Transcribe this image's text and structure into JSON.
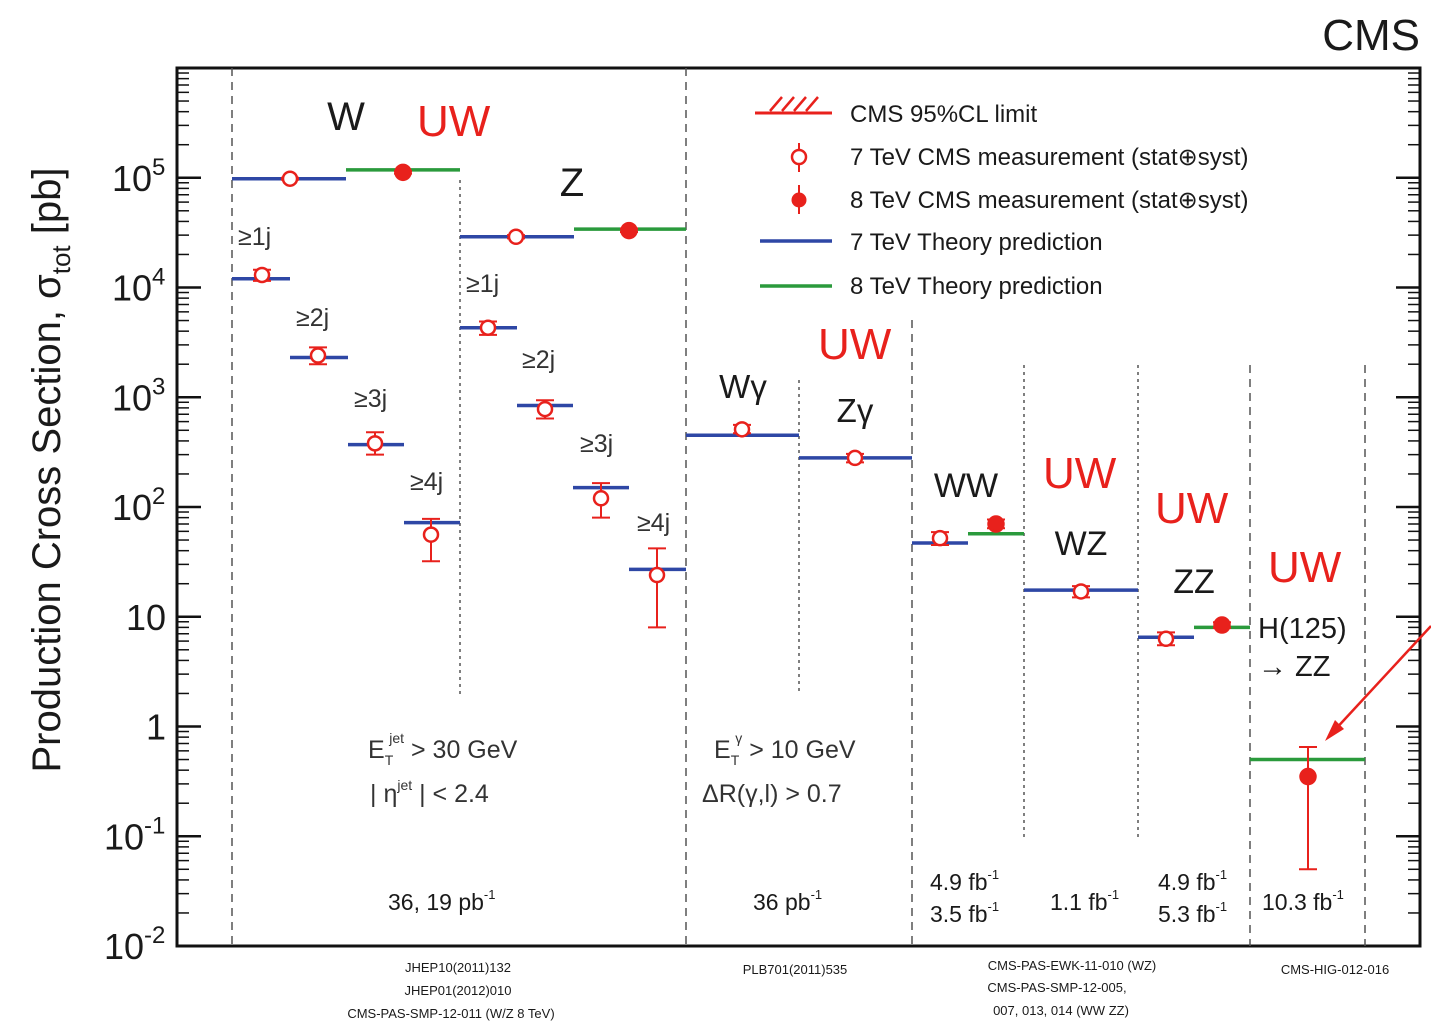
{
  "corner_label": "CMS",
  "chart_data": {
    "type": "scatter",
    "ylabel": "Production Cross Section,  σ_tot   [pb]",
    "yscale": "log",
    "ylim": [
      0.01,
      1000000
    ],
    "y_ticks": [
      {
        "value": 100000,
        "label": "10^5"
      },
      {
        "value": 10000,
        "label": "10^4"
      },
      {
        "value": 1000,
        "label": "10^3"
      },
      {
        "value": 100,
        "label": "10^2"
      },
      {
        "value": 10,
        "label": "10"
      },
      {
        "value": 1,
        "label": "1"
      },
      {
        "value": 0.1,
        "label": "10^-1"
      },
      {
        "value": 0.01,
        "label": "10^-2"
      }
    ],
    "legend": {
      "placement": "top-right",
      "entries": [
        {
          "label": "CMS 95%CL limit",
          "style": "hatch",
          "color": "#e8211c"
        },
        {
          "label": "7 TeV CMS measurement (stat⊕syst)",
          "style": "open-circle",
          "color": "#e8211c"
        },
        {
          "label": "8 TeV CMS measurement (stat⊕syst)",
          "style": "filled-circle",
          "color": "#e8211c"
        },
        {
          "label": "7 TeV Theory prediction",
          "style": "line",
          "color": "#2e47a5"
        },
        {
          "label": "8 TeV Theory prediction",
          "style": "line",
          "color": "#2a9a3c"
        }
      ]
    },
    "theory_7TeV": [
      {
        "slot": 0,
        "value": 98000
      },
      {
        "slot": 1,
        "value": 12000
      },
      {
        "slot": 2,
        "value": 2300
      },
      {
        "slot": 3,
        "value": 370
      },
      {
        "slot": 4,
        "value": 72
      },
      {
        "slot": 5,
        "value": 29000
      },
      {
        "slot": 6,
        "value": 4300
      },
      {
        "slot": 7,
        "value": 840
      },
      {
        "slot": 8,
        "value": 150
      },
      {
        "slot": 9,
        "value": 27
      },
      {
        "slot": 10,
        "value": 450
      },
      {
        "slot": 11,
        "value": 280
      },
      {
        "slot": 12,
        "value": 47
      },
      {
        "slot": 13,
        "value": 17.5
      },
      {
        "slot": 14,
        "value": 6.5
      }
    ],
    "theory_8TeV": [
      {
        "slot": 15,
        "value": 118000
      },
      {
        "slot": 16,
        "value": 34000
      },
      {
        "slot": 17,
        "value": 57
      },
      {
        "slot": 18,
        "value": 8
      },
      {
        "slot": 19,
        "value": 0.5
      }
    ],
    "measurements_7TeV": [
      {
        "slot": 0,
        "value": 98000,
        "low": 96000,
        "high": 100000
      },
      {
        "slot": 1,
        "value": 13000,
        "low": 11500,
        "high": 14500
      },
      {
        "slot": 2,
        "value": 2400,
        "low": 2000,
        "high": 2850
      },
      {
        "slot": 3,
        "value": 380,
        "low": 300,
        "high": 480
      },
      {
        "slot": 4,
        "value": 56,
        "low": 32,
        "high": 78
      },
      {
        "slot": 5,
        "value": 29000,
        "low": 28000,
        "high": 30000
      },
      {
        "slot": 6,
        "value": 4300,
        "low": 3700,
        "high": 4900
      },
      {
        "slot": 7,
        "value": 780,
        "low": 640,
        "high": 940
      },
      {
        "slot": 8,
        "value": 120,
        "low": 80,
        "high": 165
      },
      {
        "slot": 9,
        "value": 24,
        "low": 8,
        "high": 42
      },
      {
        "slot": 10,
        "value": 510,
        "low": 470,
        "high": 560
      },
      {
        "slot": 11,
        "value": 280,
        "low": 255,
        "high": 305
      },
      {
        "slot": 12,
        "value": 52,
        "low": 45,
        "high": 59
      },
      {
        "slot": 13,
        "value": 17,
        "low": 15,
        "high": 19
      },
      {
        "slot": 14,
        "value": 6.3,
        "low": 5.5,
        "high": 7.2
      }
    ],
    "measurements_8TeV": [
      {
        "slot": 15,
        "value": 112000,
        "low": 109000,
        "high": 115000
      },
      {
        "slot": 16,
        "value": 33000,
        "low": 32000,
        "high": 34500
      },
      {
        "slot": 17,
        "value": 70,
        "low": 64,
        "high": 77
      },
      {
        "slot": 18,
        "value": 8.4,
        "low": 7.9,
        "high": 8.9
      },
      {
        "slot": 19,
        "value": 0.35,
        "low": 0.05,
        "high": 0.65
      }
    ],
    "process_labels": {
      "W": "W",
      "Z": "Z",
      "Wgamma": "Wγ",
      "Zgamma": "Zγ",
      "WW": "WW",
      "WZ": "WZ",
      "ZZ": "ZZ",
      "H_line1": "H(125)",
      "H_line2": "→ ZZ"
    },
    "jet_labels": {
      "ge1j": "≥1j",
      "ge2j": "≥2j",
      "ge3j": "≥3j",
      "ge4j": "≥4j"
    },
    "cuts": {
      "jet_et_main": "E",
      "jet_et_sub": "T",
      "jet_et_sup": "jet",
      "jet_et_rest": " > 30 GeV",
      "jet_eta_pre": "| η",
      "jet_eta_sup": "jet",
      "jet_eta_rest": " | < 2.4",
      "gamma_et_main": "E",
      "gamma_et_sub": "T",
      "gamma_et_sup": "γ",
      "gamma_et_rest": " > 10 GeV",
      "gamma_dr": "ΔR(γ,l) > 0.7"
    },
    "luminosities": {
      "wz_inclusive": "36, 19 pb",
      "wz_inclusive_sup": "-1",
      "vgamma": "36 pb",
      "vgamma_sup": "-1",
      "ww_a": "4.9 fb",
      "ww_a_sup": "-1",
      "ww_b": "3.5 fb",
      "ww_b_sup": "-1",
      "wz": "1.1 fb",
      "wz_sup": "-1",
      "zz_a": "4.9 fb",
      "zz_a_sup": "-1",
      "zz_b": "5.3 fb",
      "zz_b_sup": "-1",
      "higgs": "10.3 fb",
      "higgs_sup": "-1"
    },
    "references": {
      "wz_1": "JHEP10(2011)132",
      "wz_2": "JHEP01(2012)010",
      "wz_3": "CMS-PAS-SMP-12-011 (W/Z 8 TeV)",
      "vgamma": "PLB701(2011)535",
      "dib_1": "CMS-PAS-EWK-11-010 (WZ)",
      "dib_2": "CMS-PAS-SMP-12-005,",
      "dib_3": "007, 013, 014 (WW ZZ)",
      "higgs": "CMS-HIG-012-016"
    },
    "annotations": [
      "UW",
      "UW",
      "UW",
      "UW",
      "UW",
      "UW"
    ],
    "colors": {
      "measurement": "#e8211c",
      "theory_7TeV": "#2e47a5",
      "theory_8TeV": "#2a9a3c",
      "annotation": "#e8211c"
    }
  }
}
